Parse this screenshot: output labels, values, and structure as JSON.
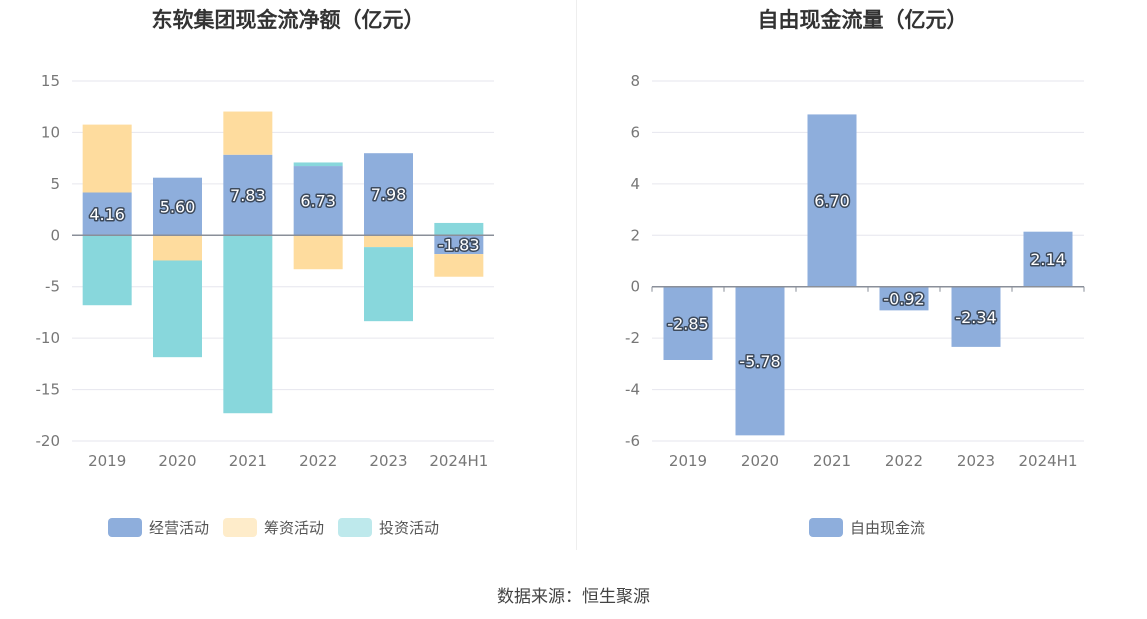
{
  "source_text": "数据来源：恒生聚源",
  "chart_data": [
    {
      "type": "bar",
      "stacked": true,
      "title": "东软集团现金流净额（亿元）",
      "categories": [
        "2019",
        "2020",
        "2021",
        "2022",
        "2023",
        "2024H1"
      ],
      "ylim": [
        -20,
        15
      ],
      "yticks": [
        15,
        10,
        5,
        0,
        -5,
        -10,
        -15,
        -20
      ],
      "grid": true,
      "legend_position": "bottom",
      "series": [
        {
          "name": "经营活动",
          "color": "#8eaedc",
          "values": [
            4.16,
            5.6,
            7.83,
            6.73,
            7.98,
            -1.83
          ],
          "labels": [
            "4.16",
            "5.60",
            "7.83",
            "6.73",
            "7.98",
            "-1.83"
          ]
        },
        {
          "name": "筹资活动",
          "color": "#fedc9e",
          "values": [
            6.6,
            -2.45,
            4.2,
            -3.3,
            -1.15,
            -2.2
          ]
        },
        {
          "name": "投资活动",
          "color": "#88d7dc",
          "values": [
            -6.8,
            -9.4,
            -17.3,
            0.35,
            -7.2,
            1.2
          ]
        }
      ]
    },
    {
      "type": "bar",
      "title": "自由现金流量（亿元）",
      "categories": [
        "2019",
        "2020",
        "2021",
        "2022",
        "2023",
        "2024H1"
      ],
      "ylim": [
        -6,
        8
      ],
      "yticks": [
        8,
        6,
        4,
        2,
        0,
        -2,
        -4,
        -6
      ],
      "grid": true,
      "legend_position": "bottom",
      "series": [
        {
          "name": "自由现金流",
          "color": "#8eaedc",
          "values": [
            -2.85,
            -5.78,
            6.7,
            -0.92,
            -2.34,
            2.14
          ],
          "labels": [
            "-2.85",
            "-5.78",
            "6.70",
            "-0.92",
            "-2.34",
            "2.14"
          ]
        }
      ]
    }
  ]
}
